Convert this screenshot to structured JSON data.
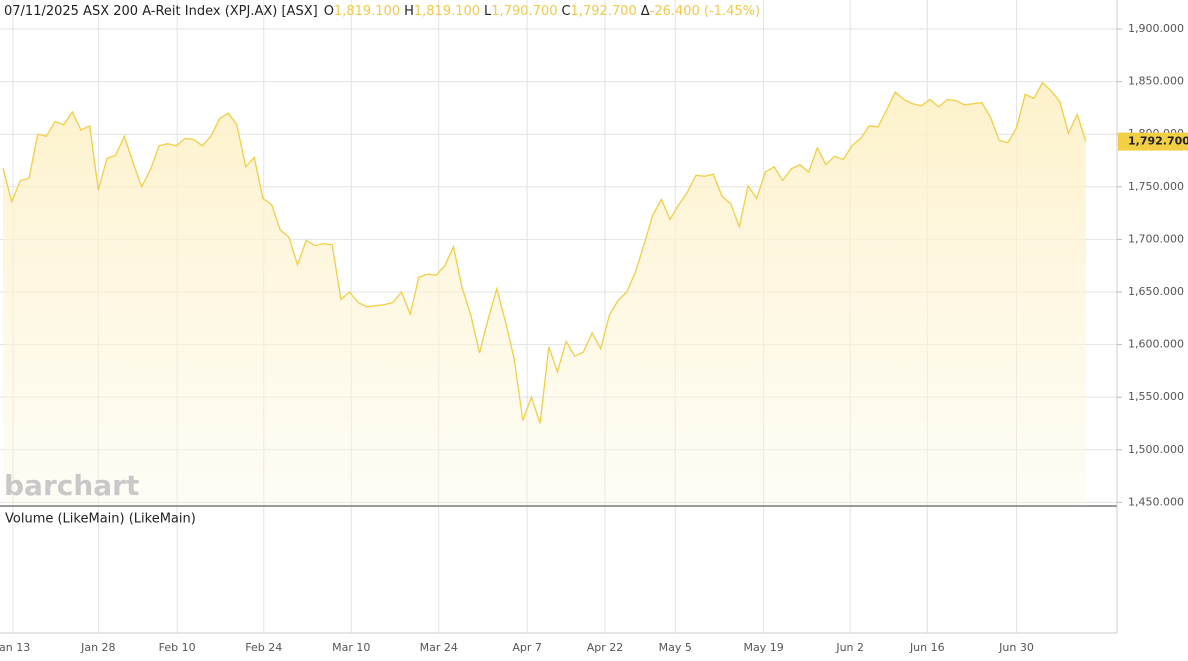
{
  "chart_data": {
    "type": "area-line",
    "title": "07/11/2025 ASX 200 A-Reit Index (XPJ.AX) [ASX]",
    "ohlc": [
      {
        "label": "O",
        "value": "1,819.100"
      },
      {
        "label": "H",
        "value": "1,819.100"
      },
      {
        "label": "L",
        "value": "1,790.700"
      },
      {
        "label": "C",
        "value": "1,792.700"
      },
      {
        "label": "Δ",
        "value": "-26.400 (-1.45%)"
      }
    ],
    "last_price_label": "1,792.700",
    "watermark": "barchart",
    "volume_label": "Volume (LikeMain)  (LikeMain)",
    "series": [
      {
        "name": "XPJ.AX",
        "color": "#f2cf45",
        "values": [
          1768,
          1736,
          1756,
          1758,
          1800,
          1798,
          1812,
          1809,
          1821,
          1804,
          1808,
          1747,
          1777,
          1780,
          1798,
          1773,
          1750,
          1766,
          1789,
          1791,
          1789,
          1796,
          1795,
          1789,
          1798,
          1815,
          1820,
          1809,
          1769,
          1778,
          1739,
          1733,
          1709,
          1702,
          1676,
          1699,
          1694,
          1696,
          1695,
          1643,
          1650,
          1640,
          1636,
          1637,
          1638,
          1640,
          1650,
          1629,
          1664,
          1667,
          1666,
          1675,
          1693,
          1654,
          1628,
          1592,
          1624,
          1653,
          1622,
          1587,
          1528,
          1550,
          1525,
          1598,
          1574,
          1603,
          1589,
          1593,
          1611,
          1596,
          1628,
          1642,
          1650,
          1669,
          1695,
          1723,
          1738,
          1719,
          1733,
          1745,
          1761,
          1760,
          1762,
          1741,
          1734,
          1712,
          1751,
          1739,
          1764,
          1769,
          1756,
          1767,
          1771,
          1764,
          1787,
          1771,
          1779,
          1776,
          1789,
          1796,
          1808,
          1807,
          1823,
          1840,
          1833,
          1829,
          1827,
          1833,
          1826,
          1833,
          1832,
          1828,
          1829,
          1830,
          1816,
          1794,
          1792,
          1806,
          1838,
          1834,
          1849,
          1841,
          1831,
          1801,
          1819,
          1793
        ]
      }
    ],
    "xlim": [
      -0.35,
      128.6
    ],
    "xticks": [
      {
        "value": 1.15,
        "label": "Jan 13"
      },
      {
        "value": 11,
        "label": "Jan 28"
      },
      {
        "value": 20.1,
        "label": "Feb 10"
      },
      {
        "value": 30.1,
        "label": "Feb 24"
      },
      {
        "value": 40.2,
        "label": "Mar 10"
      },
      {
        "value": 50.3,
        "label": "Mar 24"
      },
      {
        "value": 60.5,
        "label": "Apr 7"
      },
      {
        "value": 69.5,
        "label": "Apr 22"
      },
      {
        "value": 77.6,
        "label": "May 5"
      },
      {
        "value": 87.8,
        "label": "May 19"
      },
      {
        "value": 97.8,
        "label": "Jun 2"
      },
      {
        "value": 106.7,
        "label": "Jun 16"
      },
      {
        "value": 117,
        "label": "Jun 30"
      }
    ],
    "ylim": [
      1447.5,
      1927.6
    ],
    "yticks": [
      {
        "value": 1450,
        "label": "1,450.000"
      },
      {
        "value": 1500,
        "label": "1,500.000"
      },
      {
        "value": 1550,
        "label": "1,550.000"
      },
      {
        "value": 1600,
        "label": "1,600.000"
      },
      {
        "value": 1650,
        "label": "1,650.000"
      },
      {
        "value": 1700,
        "label": "1,700.000"
      },
      {
        "value": 1750,
        "label": "1,750.000"
      },
      {
        "value": 1800,
        "label": "1,800.000"
      },
      {
        "value": 1850,
        "label": "1,850.000"
      },
      {
        "value": 1900,
        "label": "1,900.000"
      }
    ],
    "grid": true
  }
}
